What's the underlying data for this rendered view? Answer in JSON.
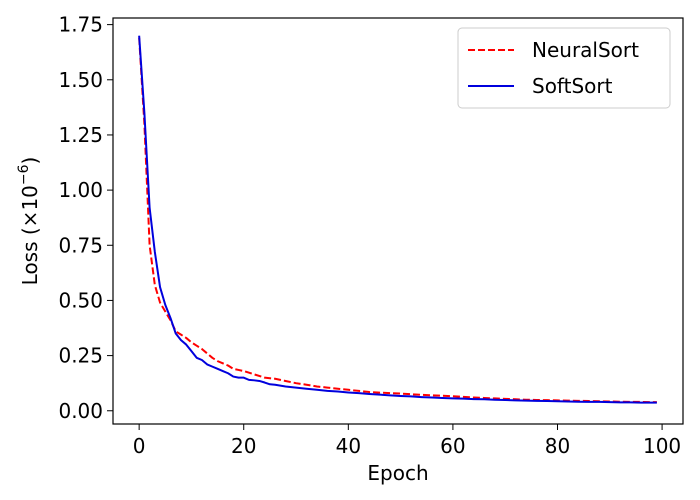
{
  "chart_data": {
    "type": "line",
    "xlabel": "Epoch",
    "ylabel_prefix": "Loss (×10",
    "ylabel_exp": "−6",
    "ylabel_suffix": ")",
    "xlim": [
      -5,
      104
    ],
    "ylim": [
      -0.06,
      1.78
    ],
    "x_ticks": [
      0,
      20,
      40,
      60,
      80,
      100
    ],
    "x_tick_labels": [
      "0",
      "20",
      "40",
      "60",
      "80",
      "100"
    ],
    "y_ticks": [
      0,
      0.25,
      0.5,
      0.75,
      1.0,
      1.25,
      1.5,
      1.75
    ],
    "y_tick_labels": [
      "0.00",
      "0.25",
      "0.50",
      "0.75",
      "1.00",
      "1.25",
      "1.50",
      "1.75"
    ],
    "grid": false,
    "legend_position": "top-right",
    "series": [
      {
        "name": "NeuralSort",
        "color": "#ff0000",
        "style": "dashed",
        "x": [
          0,
          1,
          2,
          3,
          4,
          5,
          6,
          7,
          8,
          9,
          10,
          11,
          12,
          13,
          14,
          15,
          16,
          17,
          18,
          19,
          20,
          22,
          24,
          26,
          28,
          30,
          32,
          34,
          36,
          38,
          40,
          42,
          44,
          46,
          48,
          50,
          52,
          54,
          56,
          58,
          60,
          62,
          64,
          66,
          68,
          70,
          72,
          74,
          76,
          78,
          80,
          82,
          84,
          86,
          88,
          90,
          92,
          94,
          96,
          98,
          99
        ],
        "y": [
          1.69,
          1.3,
          0.75,
          0.57,
          0.49,
          0.45,
          0.41,
          0.36,
          0.345,
          0.33,
          0.31,
          0.295,
          0.28,
          0.26,
          0.24,
          0.225,
          0.215,
          0.205,
          0.19,
          0.185,
          0.18,
          0.165,
          0.15,
          0.145,
          0.135,
          0.125,
          0.118,
          0.11,
          0.105,
          0.1,
          0.095,
          0.09,
          0.085,
          0.082,
          0.08,
          0.078,
          0.075,
          0.072,
          0.07,
          0.068,
          0.066,
          0.063,
          0.06,
          0.058,
          0.056,
          0.054,
          0.052,
          0.05,
          0.049,
          0.048,
          0.047,
          0.046,
          0.045,
          0.044,
          0.043,
          0.042,
          0.041,
          0.04,
          0.04,
          0.039,
          0.039
        ]
      },
      {
        "name": "SoftSort",
        "color": "#0000dd",
        "style": "solid",
        "x": [
          0,
          1,
          2,
          3,
          4,
          5,
          6,
          7,
          8,
          9,
          10,
          11,
          12,
          13,
          14,
          15,
          16,
          17,
          18,
          19,
          20,
          21,
          22,
          23,
          24,
          25,
          26,
          28,
          30,
          32,
          34,
          36,
          38,
          40,
          42,
          44,
          46,
          48,
          50,
          52,
          54,
          56,
          58,
          60,
          62,
          64,
          66,
          68,
          70,
          72,
          74,
          76,
          78,
          80,
          82,
          84,
          86,
          88,
          90,
          92,
          94,
          96,
          98,
          99
        ],
        "y": [
          1.7,
          1.35,
          0.92,
          0.72,
          0.56,
          0.48,
          0.42,
          0.35,
          0.32,
          0.3,
          0.27,
          0.24,
          0.23,
          0.21,
          0.2,
          0.19,
          0.18,
          0.17,
          0.155,
          0.15,
          0.15,
          0.14,
          0.138,
          0.135,
          0.128,
          0.12,
          0.118,
          0.11,
          0.105,
          0.1,
          0.095,
          0.09,
          0.087,
          0.083,
          0.08,
          0.076,
          0.073,
          0.07,
          0.067,
          0.065,
          0.062,
          0.06,
          0.058,
          0.056,
          0.055,
          0.053,
          0.052,
          0.05,
          0.049,
          0.047,
          0.046,
          0.045,
          0.044,
          0.043,
          0.042,
          0.041,
          0.04,
          0.04,
          0.039,
          0.038,
          0.038,
          0.037,
          0.037,
          0.037
        ]
      }
    ]
  }
}
